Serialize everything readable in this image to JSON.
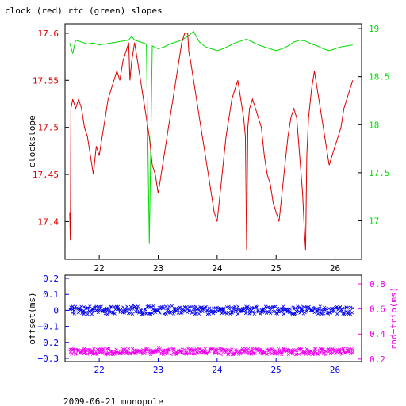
{
  "title": "clock (red) rtc (green) slopes",
  "footer": "2009-06-21 monopole",
  "colors": {
    "clock": "#dd0000",
    "rtc": "#00dd00",
    "offset": "#0000ee",
    "rndtrip": "#ee00ee",
    "axis": "#000000"
  },
  "chart_data": [
    {
      "type": "line",
      "xlim": [
        21.42,
        26.45
      ],
      "x_ticks": [
        22,
        23,
        24,
        25,
        26
      ],
      "x_tick_labels": [
        "22",
        "23",
        "24",
        "25",
        "26"
      ],
      "ylabel_left": "clockslope",
      "ylim_left": [
        17.36,
        17.61
      ],
      "y_ticks_left": [
        17.4,
        17.45,
        17.5,
        17.55,
        17.6
      ],
      "y_tick_labels_left": [
        "17.4",
        "17.45",
        "17.5",
        "17.55",
        "17.6"
      ],
      "ylim_right": [
        16.6,
        19.05
      ],
      "y_ticks_right": [
        17,
        17.5,
        18,
        18.5,
        19
      ],
      "y_tick_labels_right": [
        "17",
        "17.5",
        "18",
        "18.5",
        "19"
      ],
      "series": [
        {
          "axis": "left",
          "x": [
            21.5,
            21.51,
            21.52,
            21.55,
            21.6,
            21.65,
            21.7,
            21.75,
            21.8,
            21.85,
            21.9,
            21.95,
            22.0,
            22.05,
            22.1,
            22.15,
            22.2,
            22.25,
            22.3,
            22.35,
            22.4,
            22.45,
            22.5,
            22.52,
            22.55,
            22.6,
            22.65,
            22.7,
            22.75,
            22.8,
            22.85,
            22.9,
            22.95,
            23.0,
            23.05,
            23.1,
            23.15,
            23.2,
            23.25,
            23.3,
            23.35,
            23.4,
            23.45,
            23.5,
            23.52,
            23.55,
            23.6,
            23.65,
            23.7,
            23.75,
            23.8,
            23.85,
            23.9,
            23.95,
            24.0,
            24.05,
            24.1,
            24.15,
            24.2,
            24.25,
            24.3,
            24.35,
            24.4,
            24.45,
            24.48,
            24.5,
            24.52,
            24.55,
            24.6,
            24.65,
            24.7,
            24.75,
            24.8,
            24.85,
            24.9,
            24.95,
            25.0,
            25.05,
            25.1,
            25.15,
            25.2,
            25.25,
            25.3,
            25.35,
            25.4,
            25.45,
            25.48,
            25.5,
            25.52,
            25.55,
            25.6,
            25.65,
            25.7,
            25.75,
            25.8,
            25.85,
            25.9,
            25.95,
            26.0,
            26.05,
            26.1,
            26.15,
            26.2,
            26.25,
            26.3
          ],
          "y": [
            17.41,
            17.38,
            17.52,
            17.53,
            17.52,
            17.53,
            17.52,
            17.5,
            17.49,
            17.47,
            17.45,
            17.48,
            17.47,
            17.49,
            17.51,
            17.53,
            17.54,
            17.55,
            17.56,
            17.55,
            17.57,
            17.58,
            17.59,
            17.55,
            17.57,
            17.59,
            17.57,
            17.55,
            17.53,
            17.51,
            17.49,
            17.46,
            17.45,
            17.43,
            17.45,
            17.47,
            17.49,
            17.51,
            17.53,
            17.55,
            17.57,
            17.59,
            17.6,
            17.6,
            17.58,
            17.57,
            17.55,
            17.53,
            17.51,
            17.49,
            17.47,
            17.45,
            17.43,
            17.41,
            17.4,
            17.43,
            17.46,
            17.49,
            17.51,
            17.53,
            17.54,
            17.55,
            17.53,
            17.51,
            17.49,
            17.37,
            17.5,
            17.52,
            17.53,
            17.52,
            17.51,
            17.5,
            17.47,
            17.45,
            17.44,
            17.42,
            17.41,
            17.4,
            17.43,
            17.46,
            17.49,
            17.51,
            17.52,
            17.51,
            17.47,
            17.43,
            17.39,
            17.37,
            17.47,
            17.51,
            17.54,
            17.56,
            17.54,
            17.52,
            17.5,
            17.48,
            17.46,
            17.47,
            17.48,
            17.49,
            17.5,
            17.52,
            17.53,
            17.54,
            17.55
          ]
        },
        {
          "axis": "right",
          "x": [
            21.5,
            21.55,
            21.6,
            21.7,
            21.8,
            21.9,
            22.0,
            22.1,
            22.2,
            22.3,
            22.4,
            22.5,
            22.55,
            22.6,
            22.7,
            22.8,
            22.85,
            22.9,
            23.0,
            23.1,
            23.2,
            23.3,
            23.4,
            23.5,
            23.6,
            23.7,
            23.8,
            23.9,
            24.0,
            24.1,
            24.2,
            24.3,
            24.4,
            24.5,
            24.6,
            24.7,
            24.8,
            24.9,
            25.0,
            25.1,
            25.2,
            25.3,
            25.4,
            25.5,
            25.6,
            25.7,
            25.8,
            25.9,
            26.0,
            26.1,
            26.2,
            26.3
          ],
          "y": [
            18.85,
            18.74,
            18.88,
            18.86,
            18.84,
            18.85,
            18.83,
            18.84,
            18.85,
            18.86,
            18.87,
            18.88,
            18.92,
            18.88,
            18.86,
            18.84,
            16.76,
            18.82,
            18.79,
            18.81,
            18.84,
            18.86,
            18.88,
            18.92,
            18.97,
            18.86,
            18.81,
            18.79,
            18.77,
            18.79,
            18.82,
            18.85,
            18.87,
            18.89,
            18.86,
            18.83,
            18.81,
            18.79,
            18.77,
            18.79,
            18.82,
            18.86,
            18.88,
            18.87,
            18.84,
            18.82,
            18.79,
            18.77,
            18.79,
            18.81,
            18.82,
            18.83
          ]
        }
      ]
    },
    {
      "type": "scatter",
      "xlim": [
        21.42,
        26.45
      ],
      "x_ticks": [
        22,
        23,
        24,
        25,
        26
      ],
      "x_tick_labels": [
        "22",
        "23",
        "24",
        "25",
        "26"
      ],
      "ylabel_left": "offset(ms)",
      "ylim_left": [
        -0.32,
        0.22
      ],
      "y_ticks_left": [
        0.2,
        0.1,
        0,
        -0.1,
        -0.2,
        -0.3
      ],
      "y_tick_labels_left": [
        "0.2",
        "0.1",
        "0",
        "−0.1",
        "−0.2",
        "−0.3"
      ],
      "ylabel_right": "rnd−trip(ms)",
      "ylim_right": [
        0.18,
        0.87
      ],
      "y_ticks_right": [
        0.8,
        0.6,
        0.4,
        0.2
      ],
      "y_tick_labels_right": [
        "0.8",
        "0.6",
        "0.4",
        "0.2"
      ],
      "series": [
        {
          "axis": "left",
          "center": 0.0,
          "spread": 0.025,
          "x_range": [
            21.5,
            26.3
          ]
        },
        {
          "axis": "right",
          "center": 0.26,
          "spread": 0.025,
          "x_range": [
            21.5,
            26.3
          ]
        }
      ]
    }
  ]
}
